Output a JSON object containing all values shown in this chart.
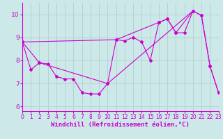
{
  "bg_color": "#cce8e8",
  "grid_color": "#aacccc",
  "line_color": "#cc00cc",
  "axis_color": "#cc00cc",
  "tick_color": "#cc00cc",
  "xlim": [
    0,
    23
  ],
  "ylim": [
    5.8,
    10.5
  ],
  "xticks": [
    0,
    1,
    2,
    3,
    4,
    5,
    6,
    7,
    8,
    9,
    10,
    11,
    12,
    13,
    14,
    15,
    16,
    17,
    18,
    19,
    20,
    21,
    22,
    23
  ],
  "yticks": [
    6,
    7,
    8,
    9,
    10
  ],
  "xlabel": "Windchill (Refroidissement éolien,°C)",
  "tick_fontsize": 5.5,
  "xlabel_fontsize": 6.5,
  "line1_x": [
    0,
    1,
    2,
    3,
    4,
    5,
    6,
    7,
    8,
    9,
    10,
    11,
    12,
    13,
    14,
    15,
    16,
    17,
    18,
    19,
    20,
    21,
    22,
    23
  ],
  "line1_y": [
    8.8,
    7.6,
    7.9,
    7.85,
    7.3,
    7.2,
    7.2,
    6.6,
    6.55,
    6.55,
    7.0,
    8.9,
    8.85,
    9.0,
    8.8,
    8.0,
    9.65,
    9.8,
    9.2,
    9.2,
    10.15,
    9.95,
    7.75,
    6.6
  ],
  "line2_x": [
    0,
    2,
    10,
    20
  ],
  "line2_y": [
    8.8,
    7.9,
    7.0,
    10.15
  ],
  "line3_x": [
    0,
    11,
    16,
    17,
    18,
    20,
    21,
    22,
    23
  ],
  "line3_y": [
    8.8,
    8.9,
    9.65,
    9.8,
    9.2,
    10.15,
    9.95,
    7.75,
    6.6
  ],
  "lw": 0.8,
  "ms": 2.0,
  "marker": "D"
}
